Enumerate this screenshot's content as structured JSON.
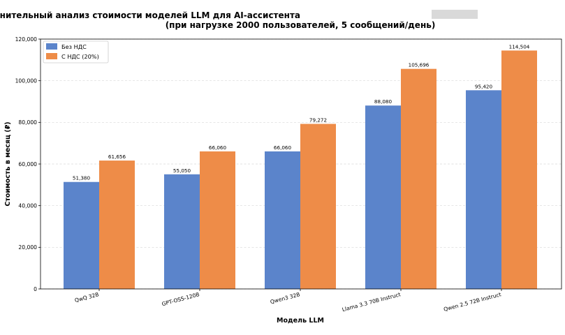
{
  "chart_data": {
    "type": "bar",
    "title_line1": "Сравнительный анализ стоимости моделей LLM для AI-ассистента",
    "title_line2": "(при нагрузке 2000 пользователей, 5 сообщений/день)",
    "xlabel": "Модель LLM",
    "ylabel": "Стоимость в месяц (₽)",
    "categories": [
      "QwQ 32B",
      "GPT-OSS-120B",
      "Qwen3 32B",
      "Llama 3.3 70B Instruct",
      "Qwen 2.5 72B Instruct"
    ],
    "series": [
      {
        "name": "Без НДС",
        "color": "#5b84cb",
        "values": [
          51380,
          55050,
          66060,
          88080,
          95420
        ],
        "labels": [
          "51,380",
          "55,050",
          "66,060",
          "88,080",
          "95,420"
        ]
      },
      {
        "name": "С НДС (20%)",
        "color": "#ee8c48",
        "values": [
          61656,
          66060,
          79272,
          105696,
          114504
        ],
        "labels": [
          "61,656",
          "66,060",
          "79,272",
          "105,696",
          "114,504"
        ]
      }
    ],
    "ylim": [
      0,
      120000
    ],
    "yticks": [
      0,
      20000,
      40000,
      60000,
      80000,
      100000,
      120000
    ],
    "ytick_labels": [
      "0",
      "20,000",
      "40,000",
      "60,000",
      "80,000",
      "100,000",
      "120,000"
    ],
    "grid": "y",
    "legend_position": "top-left"
  }
}
